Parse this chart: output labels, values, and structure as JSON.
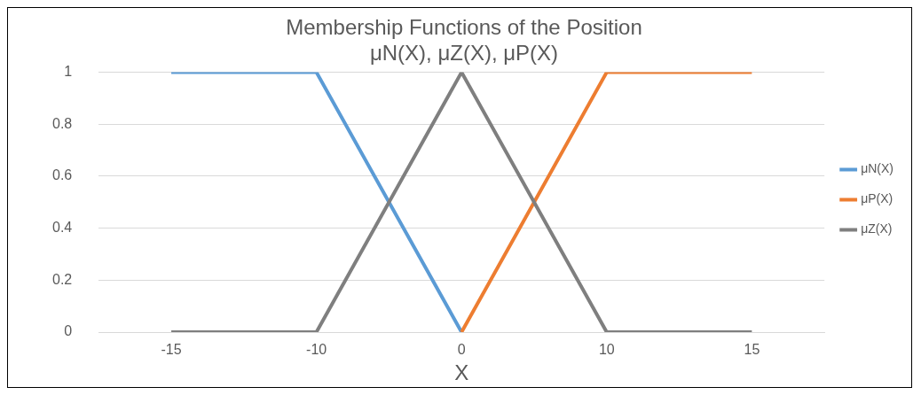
{
  "chart_data": {
    "type": "line",
    "title": "Membership Functions of the Position\nμN(X), μZ(X), μP(X)",
    "xlabel": "X",
    "categories": [
      "-15",
      "-10",
      "0",
      "10",
      "15"
    ],
    "series": [
      {
        "name": "μN(X)",
        "color": "#5b9bd5",
        "values": [
          1,
          1,
          0,
          null,
          null
        ]
      },
      {
        "name": "μP(X)",
        "color": "#ed7d31",
        "values": [
          null,
          null,
          0,
          1,
          1
        ]
      },
      {
        "name": "μZ(X)",
        "color": "#7f7f7f",
        "values": [
          0,
          0,
          1,
          0,
          0
        ]
      }
    ],
    "ylim": [
      0,
      1
    ],
    "yticks": [
      0,
      0.2,
      0.4,
      0.6,
      0.8,
      1
    ],
    "grid": "y",
    "legend": "right",
    "marker": "none",
    "line_style": "solid"
  }
}
